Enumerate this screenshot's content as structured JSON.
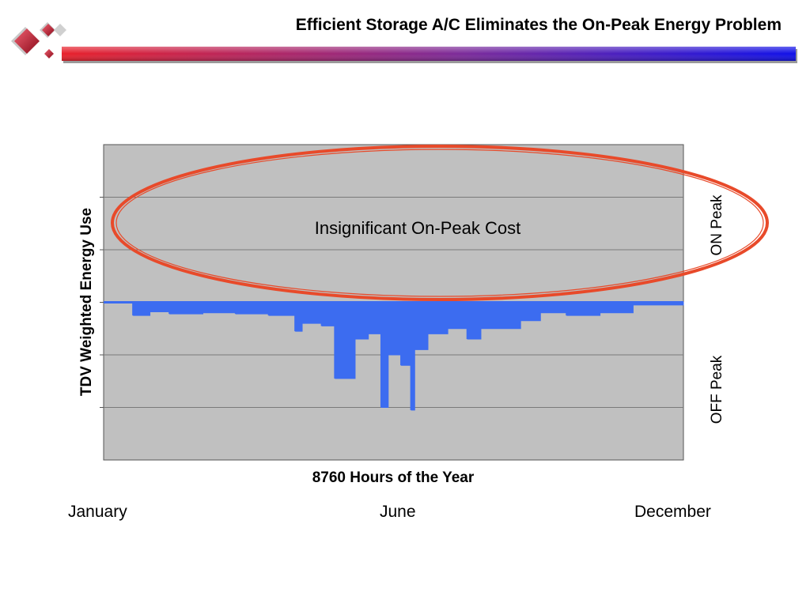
{
  "slide": {
    "title": "Efficient Storage A/C Eliminates the On-Peak Energy Problem"
  },
  "colors": {
    "plot_background": "#c0c0c0",
    "series": "#3c6cf0",
    "ellipse": "#e84a2a",
    "bar_gradient": [
      "#e8202a",
      "#7a2a9a",
      "#1010e8"
    ]
  },
  "chart_data": {
    "type": "area",
    "title": "",
    "xlabel": "8760 Hours of the Year",
    "ylabel": "TDV Weighted Energy Use",
    "xlim": [
      0,
      8760
    ],
    "ylim": [
      0,
      6
    ],
    "grid": true,
    "x_markers": [
      "January",
      "June",
      "December"
    ],
    "zones": [
      {
        "label": "ON Peak",
        "range": [
          3,
          6
        ]
      },
      {
        "label": "OFF Peak",
        "range": [
          0,
          3
        ]
      }
    ],
    "baseline": 3,
    "annotation": "Insignificant On-Peak Cost",
    "series": [
      {
        "x": [
          0,
          300,
          450,
          700,
          1000,
          1500,
          2000,
          2500,
          2900,
          3000,
          3300,
          3500,
          3800,
          4000,
          4200,
          4300,
          4500,
          4650,
          4700,
          4900,
          5200,
          5500,
          5700,
          6000,
          6300,
          6600,
          7000,
          7500,
          8000,
          8760
        ],
        "values": [
          3.0,
          3.05,
          2.75,
          2.82,
          2.78,
          2.8,
          2.78,
          2.75,
          2.45,
          2.6,
          2.55,
          1.55,
          2.3,
          2.4,
          1.0,
          2.0,
          1.8,
          0.95,
          2.1,
          2.4,
          2.5,
          2.3,
          2.5,
          2.5,
          2.65,
          2.8,
          2.75,
          2.8,
          2.95,
          3.0
        ]
      }
    ]
  }
}
